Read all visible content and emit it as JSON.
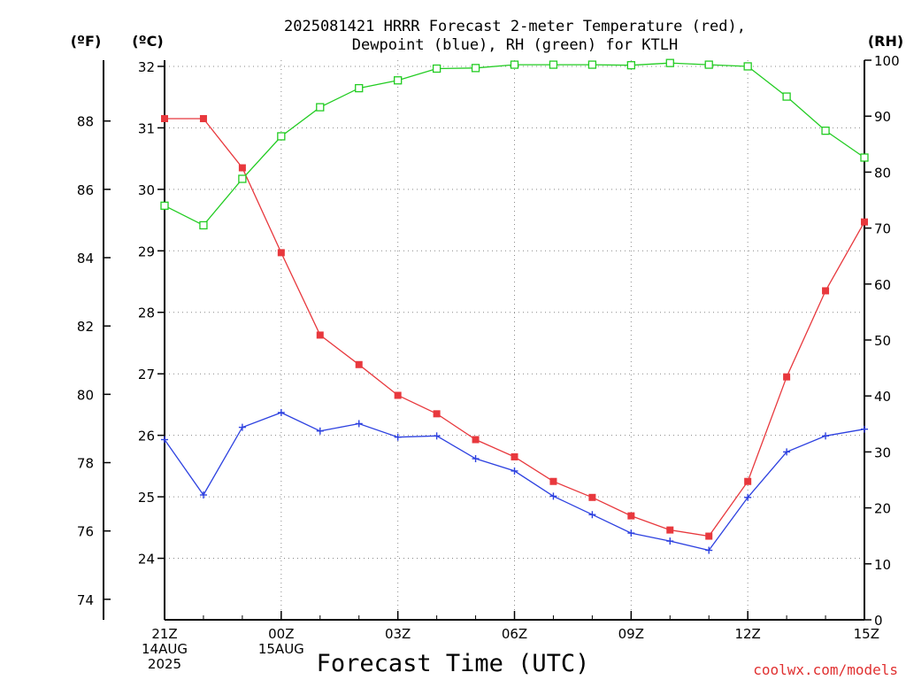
{
  "chart_data": {
    "type": "line",
    "title_line1": "2025081421 HRRR Forecast 2-meter Temperature (red),",
    "title_line2": "Dewpoint (blue), RH (green) for KTLH",
    "xlabel": "Forecast Time (UTC)",
    "ylabel_left_f": "(ºF)",
    "ylabel_left_c": "(ºC)",
    "ylabel_right": "(RH)",
    "watermark": "coolwx.com/models",
    "x_hours": [
      0,
      1,
      2,
      3,
      4,
      5,
      6,
      7,
      8,
      9,
      10,
      11,
      12,
      13,
      14,
      15,
      16,
      17,
      18
    ],
    "x_ticks": [
      {
        "hour": 0,
        "lines": [
          "21Z",
          "14AUG",
          "2025"
        ]
      },
      {
        "hour": 3,
        "lines": [
          "00Z",
          "15AUG"
        ]
      },
      {
        "hour": 6,
        "lines": [
          "03Z"
        ]
      },
      {
        "hour": 9,
        "lines": [
          "06Z"
        ]
      },
      {
        "hour": 12,
        "lines": [
          "09Z"
        ]
      },
      {
        "hour": 15,
        "lines": [
          "12Z"
        ]
      },
      {
        "hour": 18,
        "lines": [
          "15Z"
        ]
      }
    ],
    "ylim_c": [
      23.0,
      32.1
    ],
    "yticks_c": [
      24,
      25,
      26,
      27,
      28,
      29,
      30,
      31,
      32
    ],
    "yticks_f": [
      74,
      76,
      78,
      80,
      82,
      84,
      86,
      88
    ],
    "ylim_rh": [
      0,
      100
    ],
    "yticks_rh": [
      0,
      10,
      20,
      30,
      40,
      50,
      60,
      70,
      80,
      90,
      100
    ],
    "grid": true,
    "series": [
      {
        "name": "Temperature",
        "axis": "c",
        "color": "#e8383d",
        "marker": "filled-square",
        "values": [
          31.15,
          31.15,
          30.35,
          28.97,
          27.63,
          27.15,
          26.65,
          26.35,
          25.93,
          25.65,
          25.25,
          24.99,
          24.69,
          24.46,
          24.36,
          25.25,
          26.95,
          28.35,
          29.47
        ]
      },
      {
        "name": "Dewpoint",
        "axis": "c",
        "color": "#2d41e0",
        "marker": "plus",
        "values": [
          25.93,
          25.03,
          26.13,
          26.37,
          26.07,
          26.19,
          25.97,
          25.99,
          25.62,
          25.42,
          25.01,
          24.71,
          24.41,
          24.28,
          24.13,
          24.99,
          25.73,
          25.99,
          26.1
        ]
      },
      {
        "name": "RH",
        "axis": "rh",
        "color": "#22cc22",
        "marker": "open-square",
        "values": [
          74,
          70.5,
          78.8,
          86.4,
          91.6,
          95,
          96.4,
          98.5,
          98.6,
          99.2,
          99.2,
          99.2,
          99.1,
          99.5,
          99.2,
          98.9,
          93.5,
          87.4,
          82.6
        ]
      }
    ]
  }
}
